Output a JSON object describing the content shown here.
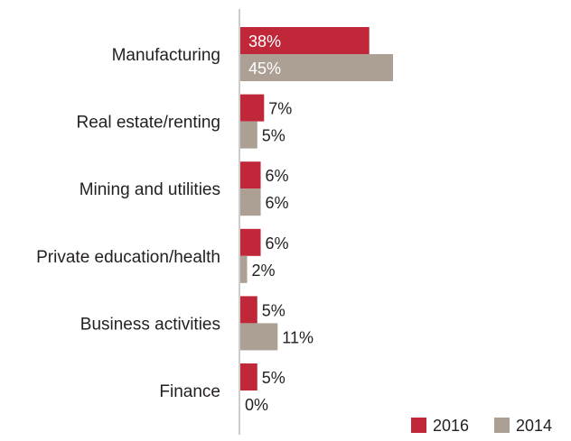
{
  "chart_data": {
    "type": "bar",
    "orientation": "horizontal",
    "categories": [
      "Manufacturing",
      "Real estate/renting",
      "Mining and utilities",
      "Private education/health",
      "Business activities",
      "Finance"
    ],
    "series": [
      {
        "name": "2016",
        "values": [
          38,
          7,
          6,
          6,
          5,
          5
        ],
        "labels": [
          "38%",
          "7%",
          "6%",
          "6%",
          "5%",
          "5%"
        ],
        "color": "#c0283a"
      },
      {
        "name": "2014",
        "values": [
          45,
          5,
          6,
          2,
          11,
          0
        ],
        "labels": [
          "45%",
          "5%",
          "6%",
          "2%",
          "11%",
          "0%"
        ],
        "color": "#aca094"
      }
    ],
    "xlim": [
      0,
      45
    ],
    "grid": false,
    "legend_position": "bottom-right",
    "value_label_placement": "inside for large bars, outside otherwise"
  }
}
